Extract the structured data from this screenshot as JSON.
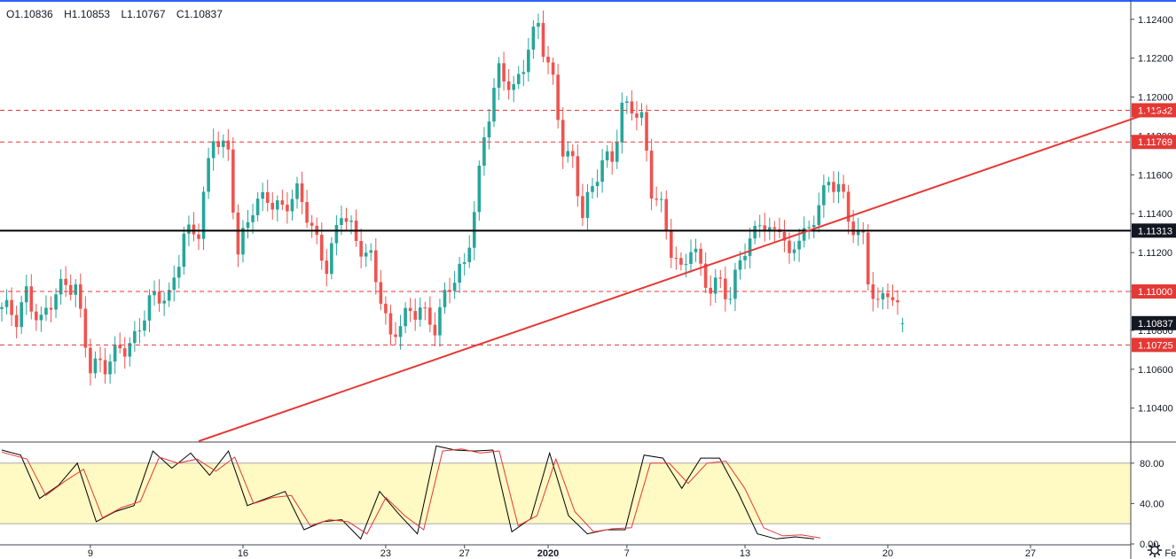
{
  "ohlc": {
    "open": "O1.10836",
    "high": "H1.10853",
    "low": "L1.10767",
    "close": "C1.10837"
  },
  "settings_icon": "gear-icon",
  "colors": {
    "up": "#26a69a",
    "down": "#ef5350",
    "trend": "#e53935",
    "level_line": "#e53935",
    "horizontal": "#000000",
    "stoch_k": "#000000",
    "stoch_d": "#e53935",
    "stoch_band": "#fff9c4"
  },
  "chart_data": [
    {
      "type": "candlestick",
      "title": "",
      "ylim": [
        1.1023,
        1.1249
      ],
      "y_ticks": [
        "1.12400",
        "1.12200",
        "1.12000",
        "1.11800",
        "1.11600",
        "1.11400",
        "1.11200",
        "1.11000",
        "1.10800",
        "1.10600",
        "1.10400"
      ],
      "x_ticks": [
        {
          "label": "9",
          "bar": 18,
          "bold": false
        },
        {
          "label": "16",
          "bar": 49,
          "bold": false
        },
        {
          "label": "23",
          "bar": 78,
          "bold": false
        },
        {
          "label": "27",
          "bar": 94,
          "bold": false
        },
        {
          "label": "2020",
          "bar": 111,
          "bold": true
        },
        {
          "label": "7",
          "bar": 127,
          "bold": false
        },
        {
          "label": "13",
          "bar": 151,
          "bold": false
        },
        {
          "label": "20",
          "bar": 180,
          "bold": false
        },
        {
          "label": "27",
          "bar": 209,
          "bold": false
        },
        {
          "label": "Feb",
          "bar": 238,
          "bold": false
        }
      ],
      "close_points": [
        [
          0,
          1.1089
        ],
        [
          3,
          1.1085
        ],
        [
          5,
          1.1102
        ],
        [
          8,
          1.1085
        ],
        [
          10,
          1.1092
        ],
        [
          13,
          1.1103
        ],
        [
          15,
          1.1105
        ],
        [
          18,
          1.1062
        ],
        [
          21,
          1.1058
        ],
        [
          24,
          1.1072
        ],
        [
          27,
          1.1078
        ],
        [
          30,
          1.1092
        ],
        [
          34,
          1.1098
        ],
        [
          37,
          1.1132
        ],
        [
          40,
          1.1128
        ],
        [
          43,
          1.118
        ],
        [
          46,
          1.1175
        ],
        [
          48,
          1.112
        ],
        [
          51,
          1.114
        ],
        [
          54,
          1.115
        ],
        [
          57,
          1.1145
        ],
        [
          60,
          1.1148
        ],
        [
          63,
          1.1132
        ],
        [
          66,
          1.1116
        ],
        [
          69,
          1.114
        ],
        [
          72,
          1.1123
        ],
        [
          75,
          1.112
        ],
        [
          77,
          1.11
        ],
        [
          79,
          1.1073
        ],
        [
          82,
          1.1085
        ],
        [
          85,
          1.1095
        ],
        [
          88,
          1.1082
        ],
        [
          91,
          1.11
        ],
        [
          94,
          1.1115
        ],
        [
          96,
          1.1145
        ],
        [
          98,
          1.118
        ],
        [
          101,
          1.121
        ],
        [
          104,
          1.1205
        ],
        [
          107,
          1.1228
        ],
        [
          109,
          1.1236
        ],
        [
          110,
          1.1222
        ],
        [
          112,
          1.1205
        ],
        [
          114,
          1.1175
        ],
        [
          116,
          1.117
        ],
        [
          118,
          1.114
        ],
        [
          120,
          1.115
        ],
        [
          122,
          1.1165
        ],
        [
          124,
          1.117
        ],
        [
          126,
          1.1198
        ],
        [
          128,
          1.1195
        ],
        [
          130,
          1.1185
        ],
        [
          132,
          1.115
        ],
        [
          134,
          1.1145
        ],
        [
          136,
          1.1125
        ],
        [
          138,
          1.111
        ],
        [
          140,
          1.112
        ],
        [
          142,
          1.111
        ],
        [
          144,
          1.1102
        ],
        [
          146,
          1.111
        ],
        [
          148,
          1.1095
        ],
        [
          150,
          1.1115
        ],
        [
          152,
          1.1122
        ],
        [
          154,
          1.114
        ],
        [
          156,
          1.1132
        ],
        [
          158,
          1.1135
        ],
        [
          160,
          1.1112
        ],
        [
          162,
          1.1128
        ],
        [
          164,
          1.1132
        ],
        [
          166,
          1.115
        ],
        [
          168,
          1.1155
        ],
        [
          170,
          1.1152
        ],
        [
          172,
          1.1135
        ],
        [
          175,
          1.113
        ],
        [
          176,
          1.111
        ],
        [
          178,
          1.1092
        ],
        [
          180,
          1.1098
        ],
        [
          182,
          1.1088
        ],
        [
          183,
          1.10837
        ]
      ],
      "lines": [
        {
          "name": "",
          "value": 1.11932,
          "label": "1.11932",
          "style": "dashed"
        },
        {
          "name": "",
          "value": 1.11769,
          "label": "1.11769",
          "style": "dashed"
        },
        {
          "name": "",
          "value": 1.11313,
          "label": "1.11313",
          "style": "solid"
        },
        {
          "name": "",
          "value": 1.11,
          "label": "1.11000",
          "style": "dashed"
        },
        {
          "name": "",
          "value": 1.10725,
          "label": "1.10725",
          "style": "dashed"
        }
      ],
      "last_price": {
        "value": 1.10837,
        "label": "1.10837"
      },
      "trendline": {
        "from": [
          40,
          1.1023
        ],
        "to": [
          262,
          1.1217
        ]
      }
    },
    {
      "type": "line",
      "title": "",
      "ylim": [
        0,
        100
      ],
      "y_ticks": [
        "80.00",
        "40.00",
        "0.00"
      ],
      "band": [
        20,
        80
      ],
      "series": [
        {
          "name": "",
          "color": "#000000",
          "points": [
            [
              0,
              93
            ],
            [
              3,
              88
            ],
            [
              6,
              45
            ],
            [
              9,
              58
            ],
            [
              12,
              80
            ],
            [
              15,
              22
            ],
            [
              18,
              32
            ],
            [
              21,
              38
            ],
            [
              24,
              92
            ],
            [
              27,
              75
            ],
            [
              30,
              90
            ],
            [
              33,
              68
            ],
            [
              36,
              92
            ],
            [
              39,
              38
            ],
            [
              42,
              45
            ],
            [
              45,
              52
            ],
            [
              48,
              14
            ],
            [
              51,
              22
            ],
            [
              54,
              24
            ],
            [
              57,
              5
            ],
            [
              60,
              52
            ],
            [
              63,
              30
            ],
            [
              66,
              10
            ],
            [
              69,
              97
            ],
            [
              72,
              93
            ],
            [
              75,
              92
            ],
            [
              78,
              93
            ],
            [
              81,
              12
            ],
            [
              84,
              25
            ],
            [
              87,
              90
            ],
            [
              90,
              28
            ],
            [
              93,
              10
            ],
            [
              96,
              14
            ],
            [
              99,
              14
            ],
            [
              102,
              88
            ],
            [
              105,
              85
            ],
            [
              108,
              55
            ],
            [
              111,
              85
            ],
            [
              114,
              85
            ],
            [
              117,
              50
            ],
            [
              120,
              10
            ],
            [
              123,
              5
            ],
            [
              126,
              7
            ],
            [
              129,
              5
            ]
          ]
        },
        {
          "name": "",
          "color": "#e53935",
          "points": [
            [
              0,
              91
            ],
            [
              4,
              84
            ],
            [
              7,
              48
            ],
            [
              10,
              62
            ],
            [
              13,
              74
            ],
            [
              16,
              26
            ],
            [
              19,
              36
            ],
            [
              22,
              42
            ],
            [
              25,
              86
            ],
            [
              28,
              80
            ],
            [
              31,
              84
            ],
            [
              34,
              72
            ],
            [
              37,
              86
            ],
            [
              40,
              40
            ],
            [
              43,
              46
            ],
            [
              46,
              48
            ],
            [
              49,
              18
            ],
            [
              52,
              24
            ],
            [
              55,
              22
            ],
            [
              58,
              10
            ],
            [
              61,
              46
            ],
            [
              64,
              28
            ],
            [
              67,
              14
            ],
            [
              70,
              92
            ],
            [
              73,
              94
            ],
            [
              76,
              90
            ],
            [
              79,
              92
            ],
            [
              82,
              18
            ],
            [
              85,
              28
            ],
            [
              88,
              84
            ],
            [
              91,
              32
            ],
            [
              94,
              12
            ],
            [
              97,
              15
            ],
            [
              100,
              16
            ],
            [
              103,
              80
            ],
            [
              106,
              80
            ],
            [
              109,
              60
            ],
            [
              112,
              80
            ],
            [
              115,
              82
            ],
            [
              118,
              55
            ],
            [
              121,
              16
            ],
            [
              124,
              8
            ],
            [
              127,
              9
            ],
            [
              130,
              6
            ]
          ]
        }
      ]
    }
  ]
}
